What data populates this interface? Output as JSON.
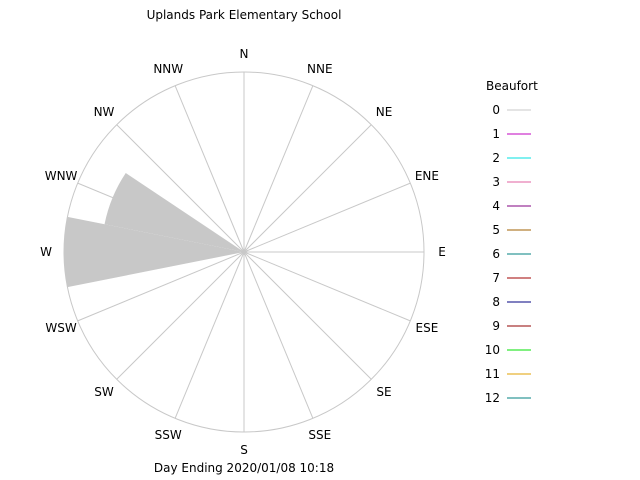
{
  "chart_data": {
    "type": "windrose",
    "title": "Uplands Park Elementary School",
    "footer": "Day Ending 2020/01/08 10:18",
    "directions": [
      "N",
      "NNE",
      "NE",
      "ENE",
      "E",
      "ESE",
      "SE",
      "SSE",
      "S",
      "SSW",
      "SW",
      "WSW",
      "W",
      "WNW",
      "NW",
      "NNW"
    ],
    "legend": {
      "title": "Beaufort",
      "position": "right",
      "entries": [
        {
          "label": "0",
          "color": "#c8c8c8"
        },
        {
          "label": "1",
          "color": "#c000c0"
        },
        {
          "label": "2",
          "color": "#00e0e0"
        },
        {
          "label": "3",
          "color": "#e060a0"
        },
        {
          "label": "4",
          "color": "#800080"
        },
        {
          "label": "5",
          "color": "#a06000"
        },
        {
          "label": "6",
          "color": "#008080"
        },
        {
          "label": "7",
          "color": "#a00000"
        },
        {
          "label": "8",
          "color": "#000080"
        },
        {
          "label": "9",
          "color": "#900000"
        },
        {
          "label": "10",
          "color": "#00e000"
        },
        {
          "label": "11",
          "color": "#e0a000"
        },
        {
          "label": "12",
          "color": "#008080"
        }
      ]
    },
    "series": [
      {
        "beaufort": "0",
        "direction": "W",
        "fraction_of_max": 1.0
      },
      {
        "beaufort": "0",
        "direction": "WNW",
        "fraction_of_max": 0.79
      }
    ],
    "rings": 1,
    "grid": true
  }
}
